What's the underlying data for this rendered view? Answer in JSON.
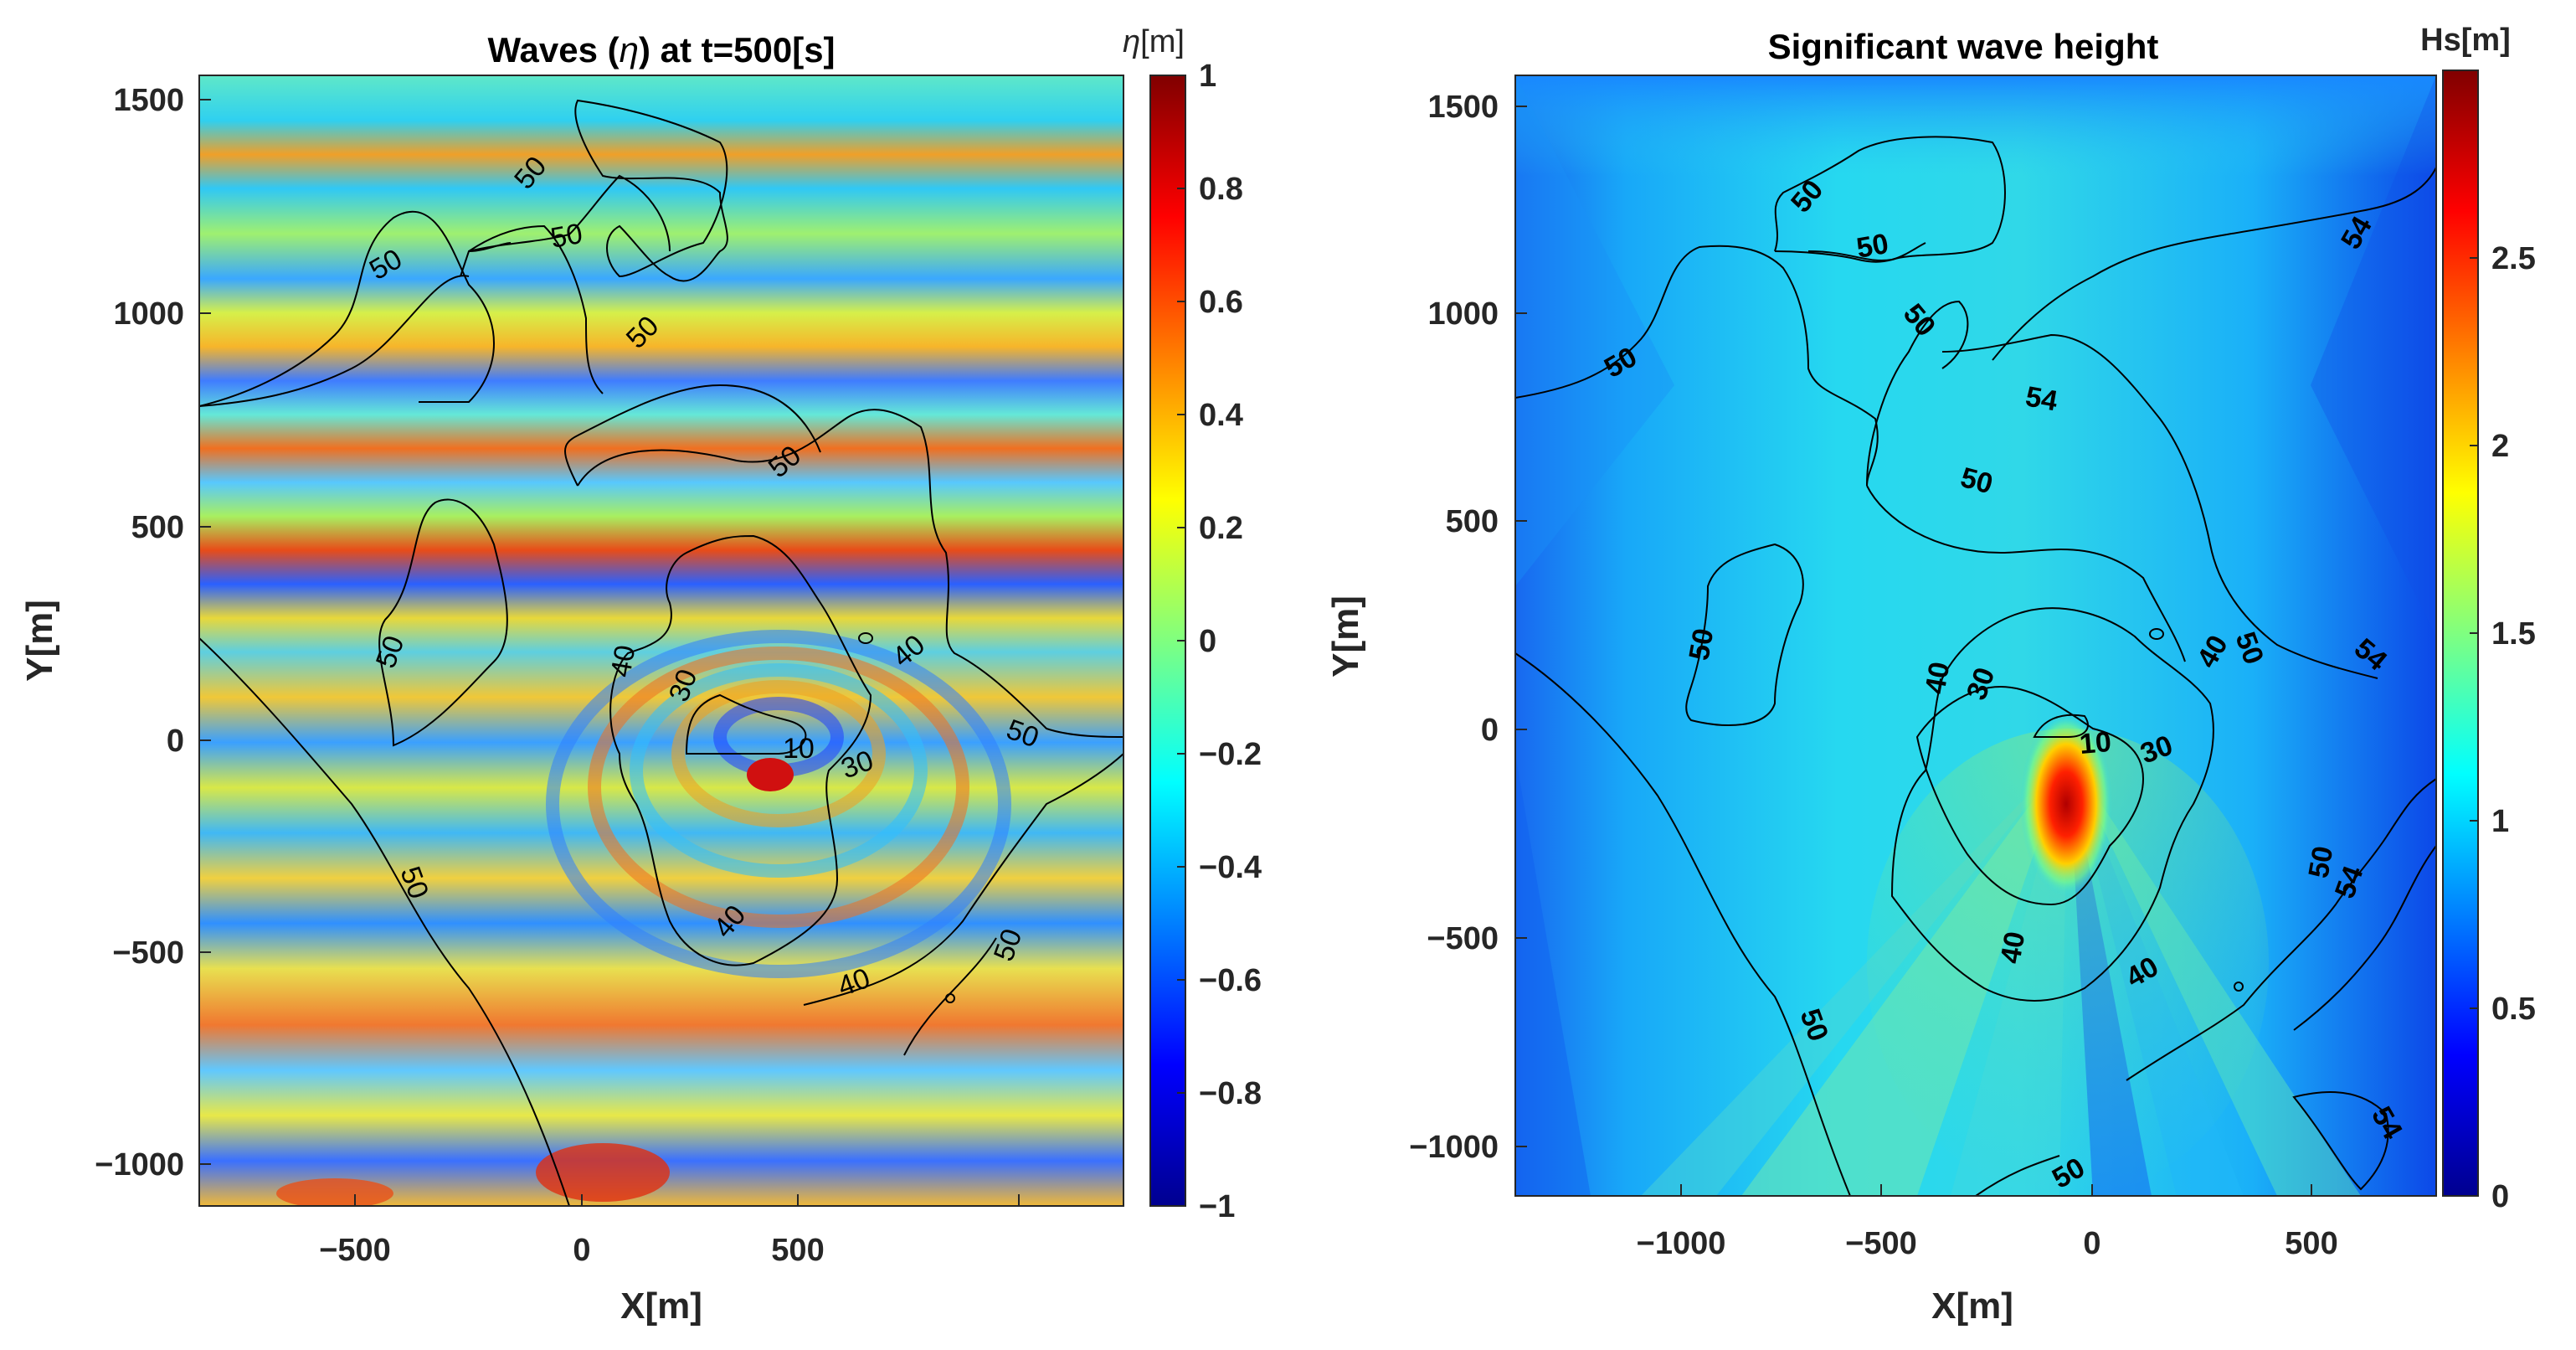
{
  "chart_data": [
    {
      "type": "heatmap",
      "title_prefix": "Waves (",
      "title_symbol": "η",
      "title_suffix": ") at t=500[s]",
      "xlabel": "X[m]",
      "ylabel": "Y[m]",
      "xlim": [
        -900,
        1250
      ],
      "ylim": [
        -1100,
        1560
      ],
      "xticks": [
        -500,
        0,
        500
      ],
      "yticks": [
        -1000,
        -500,
        0,
        500,
        1000,
        1500
      ],
      "colorbar": {
        "label_symbol": "η",
        "label_unit": "[m]",
        "range": [
          -1,
          1
        ],
        "ticks": [
          -1,
          -0.8,
          -0.6,
          -0.4,
          -0.2,
          0,
          0.2,
          0.4,
          0.6,
          0.8,
          1
        ],
        "tick_labels": [
          "−1",
          "−0.8",
          "−0.6",
          "−0.4",
          "−0.2",
          "0",
          "0.2",
          "0.4",
          "0.6",
          "0.8",
          "1"
        ],
        "colormap": "jet"
      },
      "xtick_labels": [
        "−500",
        "0",
        "500"
      ],
      "ytick_labels": [
        "−1000",
        "−500",
        "0",
        "500",
        "1000",
        "1500"
      ],
      "contour_labels": [
        {
          "text": "50",
          "x": -130,
          "y": 1310,
          "angle": -50
        },
        {
          "text": "50",
          "x": -10,
          "y": 1180,
          "angle": -10
        },
        {
          "text": "50",
          "x": -440,
          "y": 1110,
          "angle": -30
        },
        {
          "text": "50",
          "x": 180,
          "y": 950,
          "angle": -45
        },
        {
          "text": "50",
          "x": 500,
          "y": 660,
          "angle": -40
        },
        {
          "text": "50",
          "x": -460,
          "y": 220,
          "angle": -70
        },
        {
          "text": "50",
          "x": 1040,
          "y": 20,
          "angle": 20
        },
        {
          "text": "50",
          "x": -400,
          "y": -320,
          "angle": 70
        },
        {
          "text": "50",
          "x": 960,
          "y": -520,
          "angle": -70
        },
        {
          "text": "40",
          "x": 80,
          "y": 220,
          "angle": -80
        },
        {
          "text": "40",
          "x": 760,
          "y": 210,
          "angle": -40
        },
        {
          "text": "40",
          "x": 330,
          "y": -420,
          "angle": -50
        },
        {
          "text": "40",
          "x": 650,
          "y": -580,
          "angle": -20
        },
        {
          "text": "30",
          "x": 240,
          "y": 140,
          "angle": -70
        },
        {
          "text": "30",
          "x": 660,
          "y": -50,
          "angle": -20
        },
        {
          "text": "10",
          "x": 500,
          "y": -20,
          "angle": 0
        }
      ]
    },
    {
      "type": "heatmap",
      "title": "Significant wave height",
      "xlabel": "X[m]",
      "ylabel": "Y[m]",
      "xlim": [
        -1400,
        750
      ],
      "ylim": [
        -1110,
        1580
      ],
      "xticks": [
        -1000,
        -500,
        0,
        500
      ],
      "yticks": [
        -1000,
        -500,
        0,
        500,
        1000,
        1500
      ],
      "colorbar": {
        "label": "Hs[m]",
        "range": [
          0,
          3
        ],
        "ticks": [
          0,
          0.5,
          1,
          1.5,
          2,
          2.5
        ],
        "tick_labels": [
          "0",
          "0.5",
          "1",
          "1.5",
          "2",
          "2.5"
        ],
        "colormap": "jet"
      },
      "xtick_labels": [
        "−1000",
        "−500",
        "0",
        "500"
      ],
      "ytick_labels": [
        "−1000",
        "−500",
        "0",
        "500",
        "1000",
        "1500"
      ],
      "contour_labels": [
        {
          "text": "50",
          "x": -600,
          "y": 1300,
          "angle": -50
        },
        {
          "text": "50",
          "x": -490,
          "y": 1170,
          "angle": -10
        },
        {
          "text": "50",
          "x": -1070,
          "y": 890,
          "angle": -30
        },
        {
          "text": "50",
          "x": -400,
          "y": 990,
          "angle": 50
        },
        {
          "text": "54",
          "x": -170,
          "y": 810,
          "angle": 10
        },
        {
          "text": "50",
          "x": -250,
          "y": 610,
          "angle": 15
        },
        {
          "text": "54",
          "x": 660,
          "y": 1190,
          "angle": -60
        },
        {
          "text": "50",
          "x": -900,
          "y": 240,
          "angle": -80
        },
        {
          "text": "40",
          "x": -360,
          "y": 140,
          "angle": -80
        },
        {
          "text": "30",
          "x": -260,
          "y": 120,
          "angle": -70
        },
        {
          "text": "40",
          "x": 250,
          "y": 200,
          "angle": -60
        },
        {
          "text": "50",
          "x": 360,
          "y": 200,
          "angle": 70
        },
        {
          "text": "54",
          "x": 660,
          "y": 190,
          "angle": 40
        },
        {
          "text": "10",
          "x": -70,
          "y": -20,
          "angle": -5
        },
        {
          "text": "30",
          "x": 130,
          "y": -50,
          "angle": -20
        },
        {
          "text": "50",
          "x": 490,
          "y": -300,
          "angle": -80
        },
        {
          "text": "54",
          "x": 510,
          "y": -340,
          "angle": -70
        },
        {
          "text": "40",
          "x": -190,
          "y": -500,
          "angle": -80
        },
        {
          "text": "40",
          "x": 130,
          "y": -580,
          "angle": -30
        },
        {
          "text": "50",
          "x": -670,
          "y": -610,
          "angle": 70
        },
        {
          "text": "50",
          "x": -40,
          "y": -1070,
          "angle": -30
        },
        {
          "text": "54",
          "x": 600,
          "y": -920,
          "angle": 60
        }
      ]
    }
  ]
}
